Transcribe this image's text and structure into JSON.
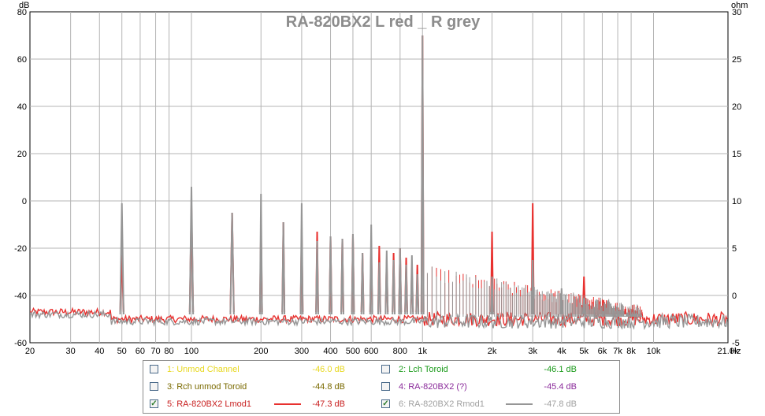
{
  "chart_data": {
    "type": "line",
    "title": "RA-820BX2 L red _ R grey",
    "ylabel_left": "dB",
    "ylabel_right": "ohm",
    "xunit": "Hz",
    "xscale": "log",
    "xlim": [
      20,
      21000
    ],
    "ylim_left": [
      -60,
      80
    ],
    "ylim_right": [
      -5,
      30
    ],
    "grid": true,
    "x_ticks": [
      "20",
      "30",
      "40",
      "50",
      "60",
      "70",
      "80",
      "100",
      "200",
      "300",
      "400",
      "500",
      "600",
      "800",
      "1k",
      "2k",
      "3k",
      "4k",
      "5k",
      "6k",
      "7k",
      "8k",
      "10k",
      "21.0k"
    ],
    "x_tick_values": [
      20,
      30,
      40,
      50,
      60,
      70,
      80,
      100,
      200,
      300,
      400,
      500,
      600,
      800,
      1000,
      2000,
      3000,
      4000,
      5000,
      6000,
      7000,
      8000,
      10000,
      21000
    ],
    "y_ticks_left": [
      "80",
      "60",
      "40",
      "20",
      "0",
      "-20",
      "-40",
      "-60"
    ],
    "y_ticks_right": [
      "30",
      "25",
      "20",
      "15",
      "10",
      "5",
      "0",
      "-5"
    ],
    "series": [
      {
        "name": "RA-820BX2 Lmod1",
        "color": "#e8312f",
        "noise_floor_db": -50,
        "peaks": [
          {
            "f": 50,
            "db": -23
          },
          {
            "f": 100,
            "db": -2
          },
          {
            "f": 150,
            "db": -5
          },
          {
            "f": 200,
            "db": -10
          },
          {
            "f": 250,
            "db": -9
          },
          {
            "f": 300,
            "db": -12
          },
          {
            "f": 350,
            "db": -13
          },
          {
            "f": 400,
            "db": -15
          },
          {
            "f": 450,
            "db": -16
          },
          {
            "f": 500,
            "db": -14
          },
          {
            "f": 550,
            "db": -22
          },
          {
            "f": 600,
            "db": -19
          },
          {
            "f": 650,
            "db": -19
          },
          {
            "f": 700,
            "db": -25
          },
          {
            "f": 750,
            "db": -22
          },
          {
            "f": 800,
            "db": -20
          },
          {
            "f": 850,
            "db": -24
          },
          {
            "f": 900,
            "db": -29
          },
          {
            "f": 950,
            "db": -27
          },
          {
            "f": 1000,
            "db": 70
          },
          {
            "f": 2000,
            "db": -13
          },
          {
            "f": 3000,
            "db": -1
          },
          {
            "f": 5000,
            "db": -32
          }
        ]
      },
      {
        "name": "RA-820BX2 Rmod1",
        "color": "#969696",
        "noise_floor_db": -51,
        "peaks": [
          {
            "f": 50,
            "db": -1
          },
          {
            "f": 100,
            "db": 6
          },
          {
            "f": 150,
            "db": -5
          },
          {
            "f": 200,
            "db": 3
          },
          {
            "f": 250,
            "db": -9
          },
          {
            "f": 300,
            "db": -1
          },
          {
            "f": 350,
            "db": -17
          },
          {
            "f": 400,
            "db": -15
          },
          {
            "f": 450,
            "db": -16
          },
          {
            "f": 500,
            "db": -14
          },
          {
            "f": 550,
            "db": -22
          },
          {
            "f": 600,
            "db": -10
          },
          {
            "f": 650,
            "db": -26
          },
          {
            "f": 700,
            "db": -21
          },
          {
            "f": 750,
            "db": -25
          },
          {
            "f": 800,
            "db": -20
          },
          {
            "f": 850,
            "db": -27
          },
          {
            "f": 900,
            "db": -23
          },
          {
            "f": 950,
            "db": -31
          },
          {
            "f": 1000,
            "db": 70
          },
          {
            "f": 2000,
            "db": -32
          },
          {
            "f": 3000,
            "db": -25
          },
          {
            "f": 4000,
            "db": -37
          },
          {
            "f": 5000,
            "db": -41
          }
        ]
      }
    ]
  },
  "legend": [
    {
      "name": "1: Unmod Channel",
      "color": "#e8d820",
      "checked": false,
      "value": "-46.0 dB",
      "show_line": false
    },
    {
      "name": "2: Lch Toroid",
      "color": "#1a9a1a",
      "checked": false,
      "value": "-46.1 dB",
      "show_line": false
    },
    {
      "name": "3: Rch unmod Toroid",
      "color": "#7a6a00",
      "checked": false,
      "value": "-44.8 dB",
      "show_line": false
    },
    {
      "name": "4: RA-820BX2 (?)",
      "color": "#8a2a9a",
      "checked": false,
      "value": "-45.4 dB",
      "show_line": false
    },
    {
      "name": "5: RA-820BX2 Lmod1",
      "color": "#c81e1e",
      "checked": true,
      "value": "-47.3 dB",
      "show_line": true,
      "line_color": "#e8312f"
    },
    {
      "name": "6: RA-820BX2 Rmod1",
      "color": "#a0a0a0",
      "checked": true,
      "value": "-47.8 dB",
      "show_line": true,
      "line_color": "#969696"
    }
  ]
}
